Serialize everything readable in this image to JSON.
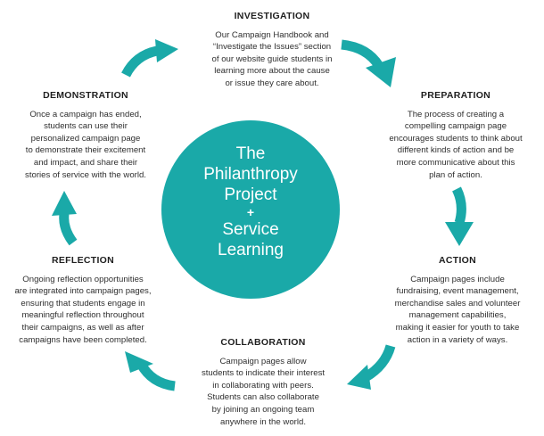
{
  "colors": {
    "accent": "#1aa9a8",
    "text": "#2b2b2b"
  },
  "center": {
    "line1": "The",
    "line2": "Philanthropy",
    "line3": "Project",
    "plus": "+",
    "line4": "Service",
    "line5": "Learning"
  },
  "stages": {
    "investigation": {
      "title": "INVESTIGATION",
      "lines": [
        "Our Campaign Handbook and",
        "“Investigate the Issues” section",
        "of our website guide students in",
        "learning more about the cause",
        "or issue they care about."
      ]
    },
    "preparation": {
      "title": "PREPARATION",
      "lines": [
        "The process of creating a",
        "compelling campaign page",
        "encourages students to think about",
        "different kinds of action and be",
        "more communicative about this",
        "plan of action."
      ]
    },
    "action": {
      "title": "ACTION",
      "lines": [
        "Campaign pages include",
        "fundraising, event management,",
        "merchandise sales and volunteer",
        "management capabilities,",
        "making it easier for youth to take",
        "action in a variety of ways."
      ]
    },
    "collaboration": {
      "title": "COLLABORATION",
      "lines": [
        "Campaign pages allow",
        "students to indicate their interest",
        "in collaborating with peers.",
        "Students can also collaborate",
        "by joining an ongoing team",
        "anywhere in the world."
      ]
    },
    "reflection": {
      "title": "REFLECTION",
      "lines": [
        "Ongoing reflection opportunities",
        "are integrated into campaign pages,",
        "ensuring that students engage in",
        "meaningful reflection throughout",
        "their campaigns, as well as after",
        "campaigns have been completed."
      ]
    },
    "demonstration": {
      "title": "DEMONSTRATION",
      "lines": [
        "Once a campaign has ended,",
        "students can use their",
        "personalized campaign page",
        "to demonstrate their excitement",
        "and impact, and share their",
        "stories of service with the world."
      ]
    }
  }
}
